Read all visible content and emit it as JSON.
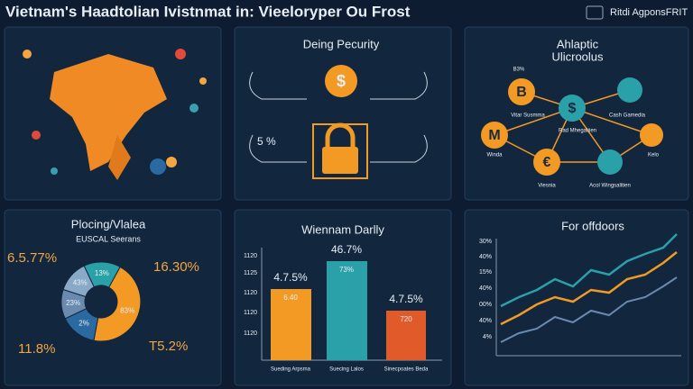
{
  "header": {
    "title": "Vietnam's Haadtolian Ivistnmat in: Vieeloryper Ou Frost",
    "badge": "Ritdi AgponsFRIT"
  },
  "security": {
    "title": "Deing Pecurity",
    "coin": "$",
    "left_label": "5 %"
  },
  "network": {
    "title": [
      "Ahlaptic",
      "Ulicroolus"
    ],
    "nodes": [
      "B",
      "$",
      "M",
      "€"
    ],
    "labels": [
      "B3%",
      "Vitar Susmma",
      "Cash Gamedia",
      "Rad Mhegatiien",
      "Winda",
      "Kelo",
      "Viesnia",
      "Acol Wingsalitien"
    ]
  },
  "donut": {
    "title": "Plocing/Vlalea",
    "subtitle": "EUSCAL Seerans",
    "outer_labels": [
      "6.5.77%",
      "16.30%",
      "11.8%",
      "T5.2%"
    ],
    "inner_labels": [
      "83%",
      "2%",
      "23%",
      "43%",
      "13%"
    ]
  },
  "bars": {
    "title": "Wiennam Darlly",
    "axis_labels": [
      "1120",
      "1125",
      "1120",
      "1120",
      "1120"
    ],
    "top_labels": [
      "4.7.5%",
      "46.7%",
      "4.7.5%"
    ],
    "bar_labels": [
      "6.40",
      "73%",
      "720"
    ],
    "categories": [
      "Sueding Arpsma",
      "Suecing Lalos",
      "Sinecpoates Beda"
    ]
  },
  "lines": {
    "title": "For offdoors",
    "axis_labels": [
      "30%",
      "40%",
      "15%",
      "40%",
      "00%",
      "40%",
      "4%"
    ]
  }
}
